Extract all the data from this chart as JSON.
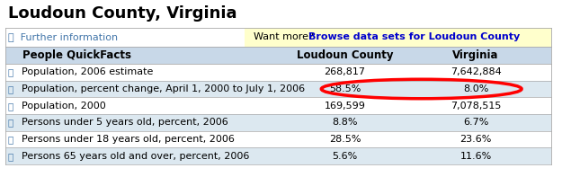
{
  "title": "Loudoun County, Virginia",
  "browse_link_text": "Browse data sets for Loudoun County",
  "header_bg": "#c8d8e8",
  "want_more_bg": "#ffffcc",
  "columns": [
    "People QuickFacts",
    "Loudoun County",
    "Virginia"
  ],
  "rows": [
    {
      "label": "Population, 2006 estimate",
      "loudoun": "268,817",
      "virginia": "7,642,884",
      "highlight": false,
      "bg": "#ffffff"
    },
    {
      "label": "Population, percent change, April 1, 2000 to July 1, 2006",
      "loudoun": "58.5%",
      "virginia": "8.0%",
      "highlight": true,
      "bg": "#dce8f0"
    },
    {
      "label": "Population, 2000",
      "loudoun": "169,599",
      "virginia": "7,078,515",
      "highlight": false,
      "bg": "#ffffff"
    },
    {
      "label": "Persons under 5 years old, percent, 2006",
      "loudoun": "8.8%",
      "virginia": "6.7%",
      "highlight": false,
      "bg": "#dce8f0"
    },
    {
      "label": "Persons under 18 years old, percent, 2006",
      "loudoun": "28.5%",
      "virginia": "23.6%",
      "highlight": false,
      "bg": "#ffffff"
    },
    {
      "label": "Persons 65 years old and over, percent, 2006",
      "loudoun": "5.6%",
      "virginia": "11.6%",
      "highlight": false,
      "bg": "#dce8f0"
    }
  ],
  "title_fontsize": 13,
  "header_fontsize": 8.5,
  "cell_fontsize": 8.0,
  "info_fontsize": 8.0,
  "figsize": [
    6.35,
    1.97
  ],
  "dpi": 100,
  "bg_color": "#ffffff",
  "border_color": "#aaaaaa",
  "link_color": "#0000cc",
  "text_color": "#000000",
  "icon_color": "#4477aa"
}
